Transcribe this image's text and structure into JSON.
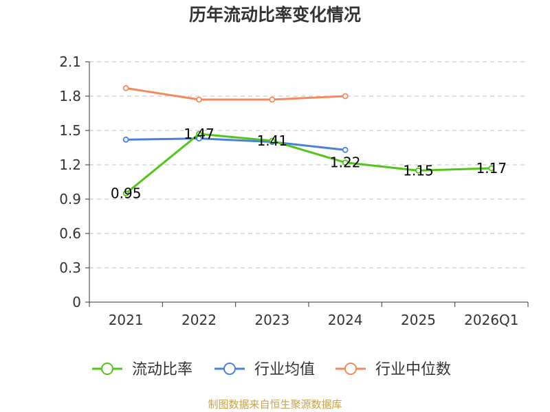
{
  "chart_data": {
    "type": "line",
    "title": "历年流动比率变化情况",
    "categories": [
      "2021",
      "2022",
      "2023",
      "2024",
      "2025",
      "2026Q1"
    ],
    "ylim": [
      0,
      2.1
    ],
    "yticks": [
      "0",
      "0.3",
      "0.6",
      "0.9",
      "1.2",
      "1.5",
      "1.8",
      "2.1"
    ],
    "grid": true,
    "legend_position": "bottom",
    "series": [
      {
        "name": "流动比率",
        "color": "#52c41a",
        "values": [
          0.95,
          1.47,
          1.41,
          1.22,
          1.15,
          1.17
        ],
        "labels": [
          "0.95",
          "1.47",
          "1.41",
          "1.22",
          "1.15",
          "1.17"
        ]
      },
      {
        "name": "行业均值",
        "color": "#4a7fdc",
        "values": [
          1.42,
          1.43,
          1.4,
          1.33,
          null,
          null
        ]
      },
      {
        "name": "行业中位数",
        "color": "#f4895f",
        "values": [
          1.87,
          1.77,
          1.77,
          1.8,
          null,
          null
        ]
      }
    ],
    "source": "制图数据来自恒生聚源数据库"
  }
}
